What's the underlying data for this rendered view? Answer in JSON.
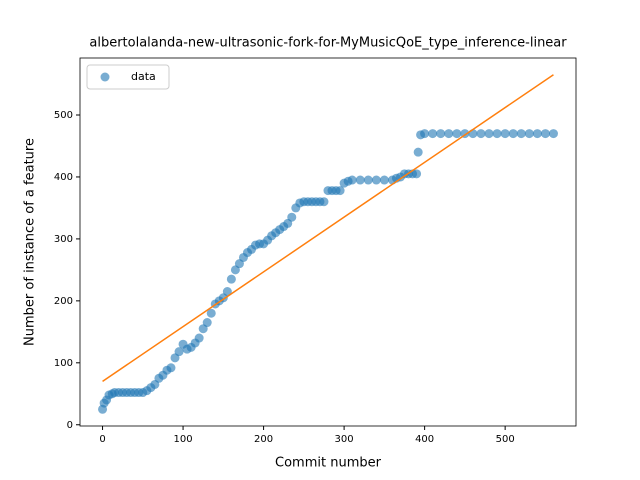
{
  "chart_data": {
    "type": "scatter",
    "title": "albertolalanda-new-ultrasonic-fork-for-MyMusicQoE_type_inference-linear",
    "x_label": "Commit number",
    "y_label": "Number of instance of a feature",
    "xlim": [
      -28,
      588
    ],
    "ylim": [
      -2,
      592
    ],
    "xticks": [
      0,
      100,
      200,
      300,
      400,
      500
    ],
    "yticks": [
      0,
      100,
      200,
      300,
      400,
      500
    ],
    "legend": "upper left",
    "series": [
      {
        "name": "data",
        "color": "#1f77b4",
        "x": [
          0,
          2,
          5,
          8,
          12,
          15,
          20,
          25,
          30,
          35,
          40,
          45,
          50,
          55,
          60,
          65,
          70,
          75,
          80,
          85,
          90,
          95,
          100,
          105,
          110,
          115,
          120,
          125,
          130,
          135,
          140,
          145,
          150,
          155,
          160,
          165,
          170,
          175,
          180,
          185,
          190,
          195,
          200,
          205,
          210,
          215,
          220,
          225,
          230,
          235,
          240,
          245,
          250,
          255,
          260,
          265,
          270,
          275,
          280,
          285,
          290,
          295,
          300,
          305,
          310,
          320,
          330,
          340,
          350,
          360,
          365,
          370,
          375,
          380,
          385,
          390,
          392,
          395,
          400,
          410,
          420,
          430,
          440,
          450,
          460,
          470,
          480,
          490,
          500,
          510,
          520,
          530,
          540,
          550,
          560
        ],
        "values": [
          25,
          35,
          40,
          48,
          50,
          52,
          52,
          52,
          52,
          52,
          52,
          52,
          52,
          55,
          60,
          65,
          75,
          80,
          88,
          92,
          108,
          118,
          130,
          122,
          125,
          132,
          140,
          155,
          165,
          180,
          195,
          200,
          205,
          215,
          235,
          250,
          260,
          270,
          278,
          283,
          290,
          292,
          292,
          298,
          305,
          310,
          315,
          320,
          325,
          335,
          350,
          358,
          360,
          360,
          360,
          360,
          360,
          360,
          378,
          378,
          378,
          378,
          390,
          393,
          395,
          395,
          395,
          395,
          395,
          395,
          398,
          400,
          405,
          405,
          405,
          405,
          440,
          468,
          470,
          470,
          470,
          470,
          470,
          470,
          470,
          470,
          470,
          470,
          470,
          470,
          470,
          470,
          470,
          470,
          470
        ]
      }
    ],
    "fit": {
      "color": "#ff7f0e",
      "x": [
        0,
        560
      ],
      "values": [
        70,
        565
      ]
    }
  }
}
